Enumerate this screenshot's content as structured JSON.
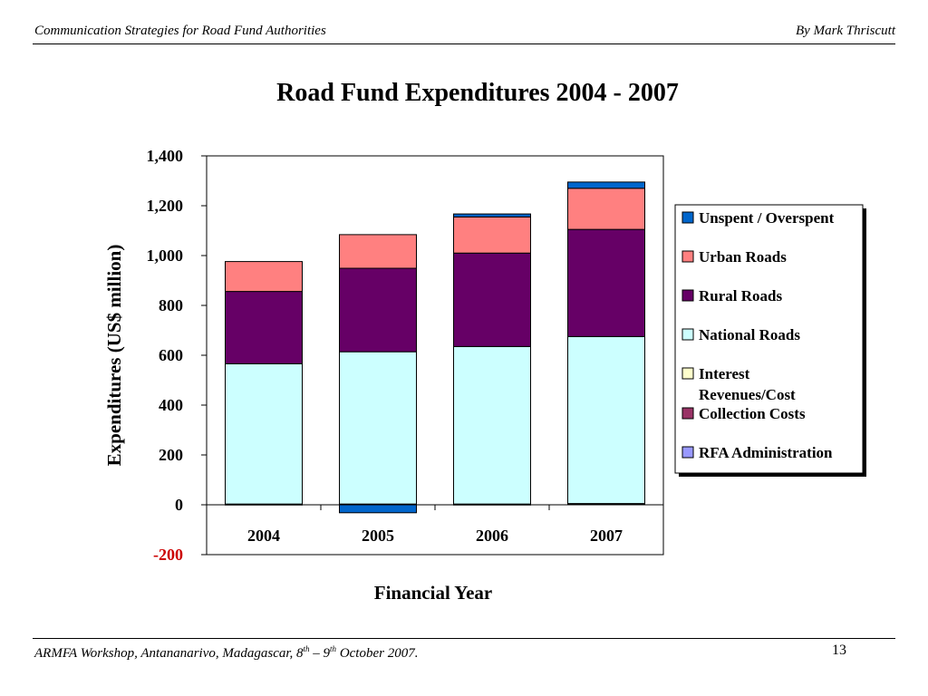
{
  "header": {
    "left": "Communication Strategies for Road Fund Authorities",
    "right": "By Mark Thriscutt"
  },
  "footer": {
    "left_pre": "ARMFA Workshop, Antananarivo, Madagascar, 8",
    "left_sup1": "th",
    "left_mid": " – 9",
    "left_sup2": "th",
    "left_post": " October 2007.",
    "page_number": "13"
  },
  "chart_data": {
    "type": "bar",
    "stacked": true,
    "title": "Road Fund Expenditures 2004 - 2007",
    "xlabel": "Financial Year",
    "ylabel": "Expenditures (US$ million)",
    "ylim": [
      -200,
      1400
    ],
    "yticks": [
      "1,400",
      "1,200",
      "1,000",
      "800",
      "600",
      "400",
      "200",
      "0",
      "-200"
    ],
    "ytick_values": [
      1400,
      1200,
      1000,
      800,
      600,
      400,
      200,
      0,
      -200
    ],
    "ytick_colors": [
      "#000000",
      "#000000",
      "#000000",
      "#000000",
      "#000000",
      "#000000",
      "#000000",
      "#000000",
      "#cc0000"
    ],
    "categories": [
      "2004",
      "2005",
      "2006",
      "2007"
    ],
    "grid": false,
    "legend_position": "right",
    "series": [
      {
        "name": "RFA Administration",
        "color": "#9999ff",
        "values": [
          2,
          2,
          2,
          3
        ]
      },
      {
        "name": "Collection Costs",
        "color": "#993366",
        "values": [
          1,
          1,
          1,
          2
        ]
      },
      {
        "name": "Interest Revenues/Cost",
        "color": "#ffffcc",
        "values": [
          0,
          0,
          0,
          0
        ]
      },
      {
        "name": "National Roads",
        "color": "#ccffff",
        "values": [
          563,
          611,
          632,
          670
        ]
      },
      {
        "name": "Rural Roads",
        "color": "#660066",
        "values": [
          290,
          335,
          375,
          430
        ]
      },
      {
        "name": "Urban Roads",
        "color": "#ff8080",
        "values": [
          120,
          135,
          145,
          165
        ]
      },
      {
        "name": "Unspent / Overspent",
        "color": "#0066cc",
        "values": [
          0,
          -32,
          12,
          25
        ]
      }
    ],
    "legend_order": [
      6,
      5,
      4,
      3,
      2,
      1,
      0
    ]
  }
}
